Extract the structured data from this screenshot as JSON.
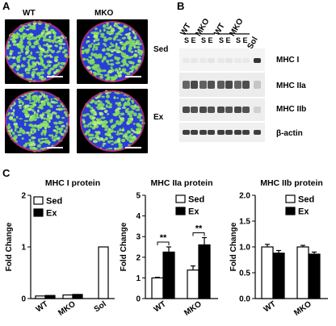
{
  "figure": {
    "panel_a": {
      "label": "A",
      "col_titles": [
        "WT",
        "MKO"
      ],
      "row_labels": [
        "Sed",
        "Ex"
      ]
    },
    "panel_b": {
      "label": "B",
      "lane_groups": [
        "WT",
        "MKO",
        "WT",
        "MKO",
        "Sol"
      ],
      "lane_conditions": [
        "S E",
        "S E",
        "S E",
        "S E"
      ],
      "band_labels": [
        "MHC I",
        "MHC IIa",
        "MHC IIb",
        "β-actin"
      ]
    },
    "panel_c": {
      "label": "C"
    }
  },
  "chart_data": [
    {
      "type": "bar",
      "title": "MHC I protein",
      "ylabel": "Fold Change",
      "categories": [
        "WT",
        "MKO",
        "Sol"
      ],
      "series": [
        {
          "name": "Sed",
          "values": [
            0.05,
            0.07,
            1.0
          ]
        },
        {
          "name": "Ex",
          "values": [
            0.06,
            0.08,
            null
          ]
        }
      ],
      "ylim": [
        0,
        2
      ],
      "yticks": [
        0,
        1,
        2
      ],
      "legend": [
        "Sed",
        "Ex"
      ],
      "legend_position": "top-left",
      "significance": []
    },
    {
      "type": "bar",
      "title": "MHC IIa protein",
      "ylabel": "Fold Change",
      "categories": [
        "WT",
        "MKO"
      ],
      "series": [
        {
          "name": "Sed",
          "values": [
            1.0,
            1.38
          ],
          "errors": [
            0.03,
            0.2
          ]
        },
        {
          "name": "Ex",
          "values": [
            2.25,
            2.6
          ],
          "errors": [
            0.25,
            0.35
          ]
        }
      ],
      "ylim": [
        0,
        5
      ],
      "yticks": [
        0,
        1,
        2,
        3,
        4,
        5
      ],
      "legend": [
        "Sed",
        "Ex"
      ],
      "legend_position": "top-right",
      "significance": [
        "**",
        "**"
      ]
    },
    {
      "type": "bar",
      "title": "MHC IIb protein",
      "ylabel": "Fold Change",
      "categories": [
        "WT",
        "MKO"
      ],
      "series": [
        {
          "name": "Sed",
          "values": [
            1.0,
            1.0
          ],
          "errors": [
            0.05,
            0.03
          ]
        },
        {
          "name": "Ex",
          "values": [
            0.88,
            0.86
          ],
          "errors": [
            0.05,
            0.04
          ]
        }
      ],
      "ylim": [
        0,
        2
      ],
      "yticks": [
        "0.0",
        "0.5",
        "1.0",
        "1.5",
        "2.0"
      ],
      "legend": [
        "Sed",
        "Ex"
      ],
      "legend_position": "top-right",
      "significance": []
    }
  ],
  "colors": {
    "sed_fill": "#ffffff",
    "ex_fill": "#000000",
    "fiber_green": "#7fe05a",
    "nuclei_blue": "#2a3dd6",
    "membrane_magenta": "#c0307a",
    "blot_band": "#2b2b2b"
  }
}
